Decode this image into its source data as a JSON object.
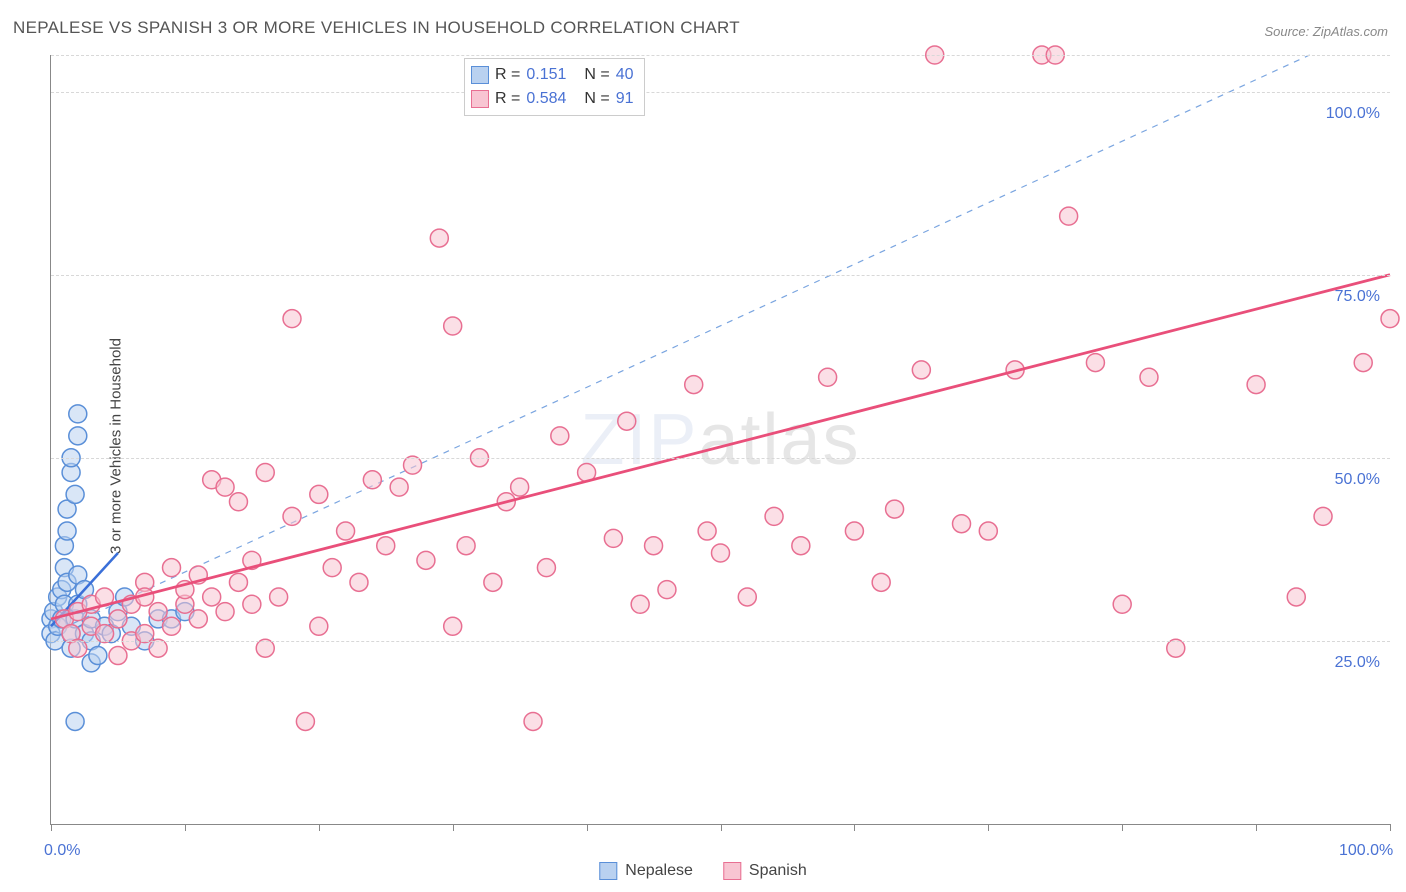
{
  "title": "NEPALESE VS SPANISH 3 OR MORE VEHICLES IN HOUSEHOLD CORRELATION CHART",
  "source": "Source: ZipAtlas.com",
  "y_axis_label": "3 or more Vehicles in Household",
  "watermark_a": "ZIP",
  "watermark_b": "atlas",
  "chart": {
    "type": "scatter",
    "xlim": [
      0,
      100
    ],
    "ylim": [
      0,
      105
    ],
    "y_gridlines": [
      25,
      50,
      75,
      100,
      105
    ],
    "y_tick_labels": {
      "25": "25.0%",
      "50": "50.0%",
      "75": "75.0%",
      "100": "100.0%"
    },
    "x_tick_positions": [
      0,
      10,
      20,
      30,
      40,
      50,
      60,
      70,
      80,
      90,
      100
    ],
    "x_tick_labels": {
      "0": "0.0%",
      "100": "100.0%"
    },
    "background_color": "#ffffff",
    "grid_color": "#d8d8d8",
    "axis_color": "#888888",
    "marker_radius": 9,
    "marker_stroke_width": 1.5,
    "series": [
      {
        "name": "Nepalese",
        "fill": "#b9d1f0",
        "stroke": "#5a8fd8",
        "fill_opacity": 0.55,
        "R": "0.151",
        "N": "40",
        "trend_line": {
          "x1": 0,
          "y1": 27,
          "x2": 5,
          "y2": 37,
          "stroke": "#3a6fd8",
          "width": 2.5,
          "dash": null
        },
        "ideal_line": {
          "x1": 0,
          "y1": 26,
          "x2": 94,
          "y2": 105,
          "stroke": "#7aa5e0",
          "width": 1.2,
          "dash": "6,6"
        },
        "points": [
          [
            0,
            28
          ],
          [
            0,
            26
          ],
          [
            0.2,
            29
          ],
          [
            0.3,
            25
          ],
          [
            0.5,
            31
          ],
          [
            0.5,
            27
          ],
          [
            0.8,
            28
          ],
          [
            0.8,
            32
          ],
          [
            1,
            35
          ],
          [
            1,
            38
          ],
          [
            1,
            30
          ],
          [
            1.2,
            33
          ],
          [
            1.2,
            40
          ],
          [
            1.2,
            43
          ],
          [
            1.5,
            24
          ],
          [
            1.5,
            26
          ],
          [
            1.5,
            48
          ],
          [
            1.5,
            50
          ],
          [
            1.8,
            28
          ],
          [
            1.8,
            45
          ],
          [
            2,
            30
          ],
          [
            2,
            34
          ],
          [
            2,
            53
          ],
          [
            2,
            56
          ],
          [
            2.5,
            26
          ],
          [
            2.5,
            32
          ],
          [
            3,
            22
          ],
          [
            3,
            28
          ],
          [
            3,
            25
          ],
          [
            3.5,
            23
          ],
          [
            4,
            27
          ],
          [
            4.5,
            26
          ],
          [
            5,
            29
          ],
          [
            5.5,
            31
          ],
          [
            6,
            27
          ],
          [
            7,
            25
          ],
          [
            8,
            28
          ],
          [
            9,
            28
          ],
          [
            10,
            29
          ],
          [
            1.8,
            14
          ]
        ]
      },
      {
        "name": "Spanish",
        "fill": "#f8c5d2",
        "stroke": "#e86f92",
        "fill_opacity": 0.55,
        "R": "0.584",
        "N": "91",
        "trend_line": {
          "x1": 0,
          "y1": 28,
          "x2": 100,
          "y2": 75,
          "stroke": "#e94f7a",
          "width": 2.8,
          "dash": null
        },
        "ideal_line": null,
        "points": [
          [
            1,
            28
          ],
          [
            1.5,
            26
          ],
          [
            2,
            29
          ],
          [
            2,
            24
          ],
          [
            3,
            27
          ],
          [
            3,
            30
          ],
          [
            4,
            26
          ],
          [
            4,
            31
          ],
          [
            5,
            23
          ],
          [
            5,
            28
          ],
          [
            6,
            30
          ],
          [
            6,
            25
          ],
          [
            7,
            33
          ],
          [
            7,
            31
          ],
          [
            7,
            26
          ],
          [
            8,
            29
          ],
          [
            8,
            24
          ],
          [
            9,
            35
          ],
          [
            9,
            27
          ],
          [
            10,
            30
          ],
          [
            10,
            32
          ],
          [
            11,
            28
          ],
          [
            11,
            34
          ],
          [
            12,
            31
          ],
          [
            12,
            47
          ],
          [
            13,
            46
          ],
          [
            13,
            29
          ],
          [
            14,
            33
          ],
          [
            14,
            44
          ],
          [
            15,
            30
          ],
          [
            15,
            36
          ],
          [
            16,
            48
          ],
          [
            16,
            24
          ],
          [
            17,
            31
          ],
          [
            18,
            42
          ],
          [
            18,
            69
          ],
          [
            19,
            14
          ],
          [
            20,
            27
          ],
          [
            20,
            45
          ],
          [
            21,
            35
          ],
          [
            22,
            40
          ],
          [
            23,
            33
          ],
          [
            24,
            47
          ],
          [
            25,
            38
          ],
          [
            26,
            46
          ],
          [
            27,
            49
          ],
          [
            28,
            36
          ],
          [
            29,
            80
          ],
          [
            30,
            27
          ],
          [
            30,
            68
          ],
          [
            31,
            38
          ],
          [
            32,
            50
          ],
          [
            33,
            33
          ],
          [
            34,
            44
          ],
          [
            35,
            46
          ],
          [
            36,
            14
          ],
          [
            37,
            35
          ],
          [
            38,
            53
          ],
          [
            40,
            48
          ],
          [
            42,
            39
          ],
          [
            43,
            55
          ],
          [
            44,
            30
          ],
          [
            45,
            38
          ],
          [
            46,
            32
          ],
          [
            48,
            60
          ],
          [
            49,
            40
          ],
          [
            50,
            37
          ],
          [
            52,
            31
          ],
          [
            54,
            42
          ],
          [
            56,
            38
          ],
          [
            58,
            61
          ],
          [
            60,
            40
          ],
          [
            62,
            33
          ],
          [
            63,
            43
          ],
          [
            65,
            62
          ],
          [
            66,
            105
          ],
          [
            68,
            41
          ],
          [
            70,
            40
          ],
          [
            72,
            62
          ],
          [
            74,
            105
          ],
          [
            75,
            105
          ],
          [
            76,
            83
          ],
          [
            78,
            63
          ],
          [
            80,
            30
          ],
          [
            82,
            61
          ],
          [
            84,
            24
          ],
          [
            90,
            60
          ],
          [
            93,
            31
          ],
          [
            95,
            42
          ],
          [
            98,
            63
          ],
          [
            100,
            69
          ]
        ]
      }
    ]
  },
  "stats_legend": {
    "row1": {
      "R_label": "R =",
      "R": "0.151",
      "N_label": "N =",
      "N": "40"
    },
    "row2": {
      "R_label": "R =",
      "R": "0.584",
      "N_label": "N =",
      "91": "91",
      "N": "91"
    }
  },
  "bottom_legend": {
    "item1": "Nepalese",
    "item2": "Spanish"
  },
  "colors": {
    "blue_fill": "#b9d1f0",
    "blue_stroke": "#5a8fd8",
    "pink_fill": "#f8c5d2",
    "pink_stroke": "#e86f92",
    "tick_label": "#4a72d4"
  }
}
